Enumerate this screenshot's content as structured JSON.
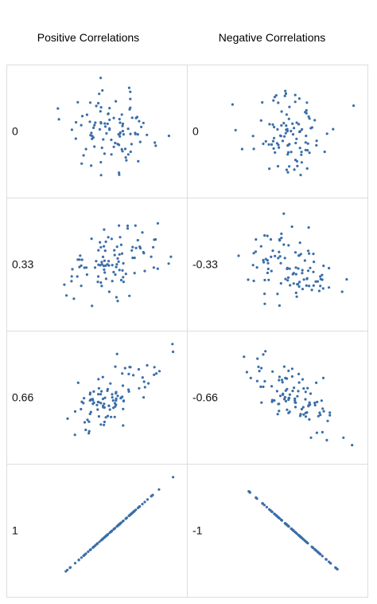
{
  "columns": [
    {
      "title": "Positive Correlations"
    },
    {
      "title": "Negative Correlations"
    }
  ],
  "colors": {
    "point": "#3b6ea8",
    "border": "#dddddd",
    "text": "#111111"
  },
  "chart_data": [
    {
      "type": "scatter",
      "label": "0",
      "correlation": 0,
      "n": 100,
      "xlim": [
        -3,
        3
      ],
      "ylim": [
        -3,
        3
      ],
      "x": [],
      "y": []
    },
    {
      "type": "scatter",
      "label": "0",
      "correlation": 0,
      "n": 100,
      "xlim": [
        -3,
        3
      ],
      "ylim": [
        -3,
        3
      ],
      "x": [],
      "y": []
    },
    {
      "type": "scatter",
      "label": "0.33",
      "correlation": 0.33,
      "n": 100,
      "xlim": [
        -3,
        3
      ],
      "ylim": [
        -3,
        3
      ],
      "x": [],
      "y": []
    },
    {
      "type": "scatter",
      "label": "-0.33",
      "correlation": -0.33,
      "n": 100,
      "xlim": [
        -3,
        3
      ],
      "ylim": [
        -3,
        3
      ],
      "x": [],
      "y": []
    },
    {
      "type": "scatter",
      "label": "0.66",
      "correlation": 0.66,
      "n": 100,
      "xlim": [
        -3,
        3
      ],
      "ylim": [
        -3,
        3
      ],
      "x": [],
      "y": []
    },
    {
      "type": "scatter",
      "label": "-0.66",
      "correlation": -0.66,
      "n": 100,
      "xlim": [
        -3,
        3
      ],
      "ylim": [
        -3,
        3
      ],
      "x": [],
      "y": []
    },
    {
      "type": "scatter",
      "label": "1",
      "correlation": 1,
      "n": 100,
      "xlim": [
        -3,
        3
      ],
      "ylim": [
        -3,
        3
      ],
      "x": [],
      "y": []
    },
    {
      "type": "scatter",
      "label": "-1",
      "correlation": -1,
      "n": 100,
      "xlim": [
        -3,
        3
      ],
      "ylim": [
        -3,
        3
      ],
      "x": [],
      "y": []
    }
  ]
}
